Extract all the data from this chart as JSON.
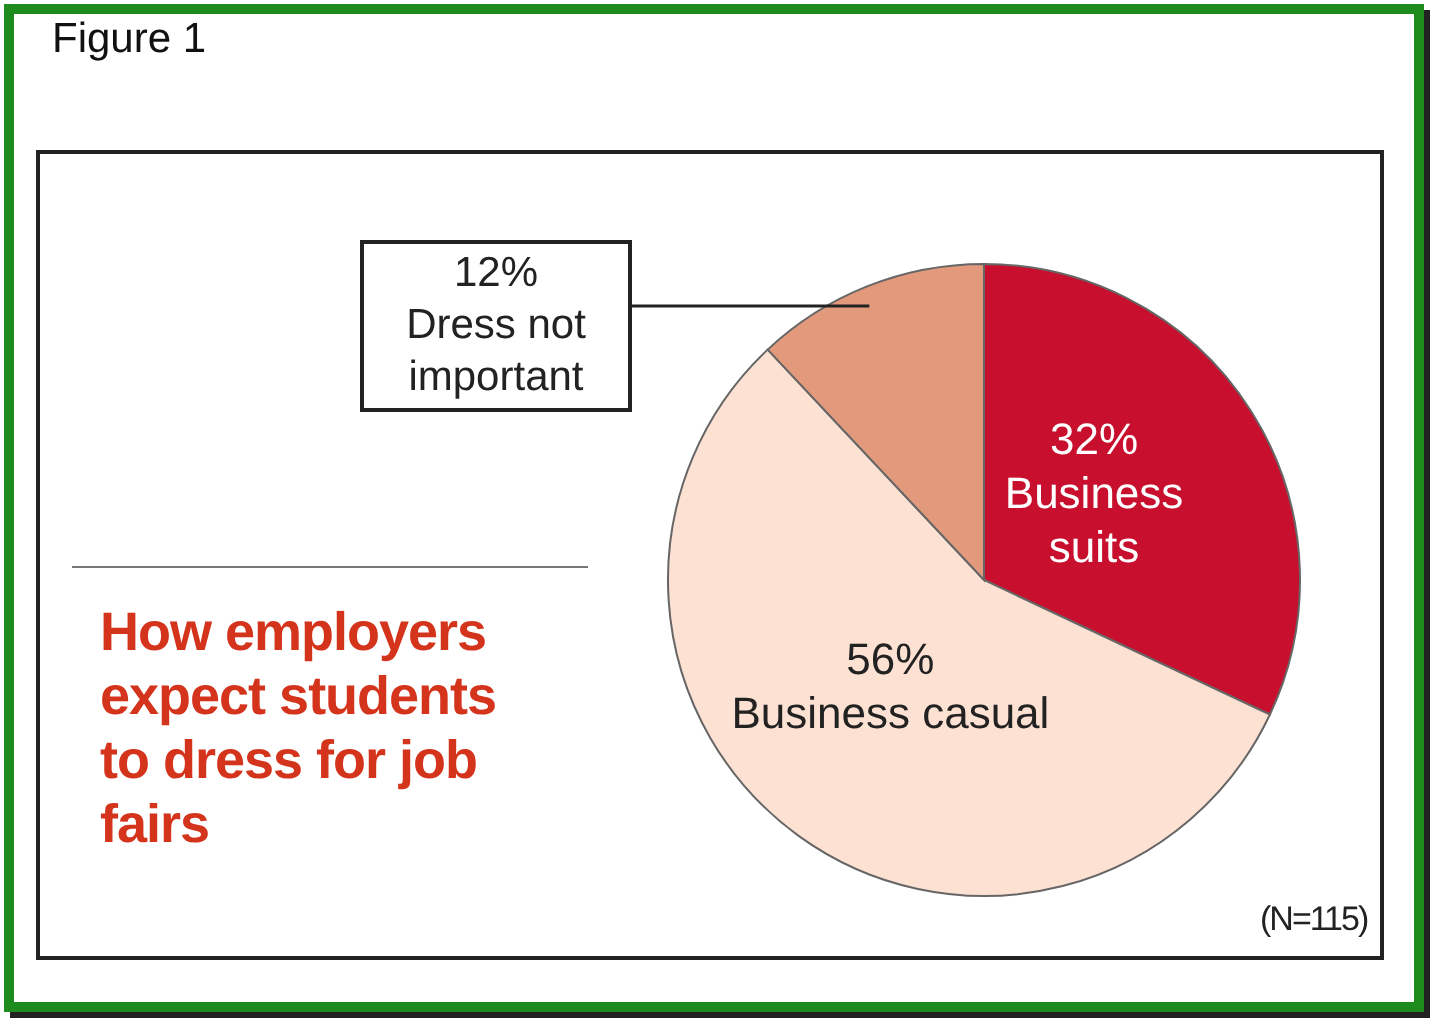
{
  "chart_data": {
    "type": "pie",
    "title": "How employers expect students to dress for job fairs",
    "categories": [
      "Business suits",
      "Business casual",
      "Dress not important"
    ],
    "values": [
      32,
      56,
      12
    ],
    "colors": [
      "#c8102e",
      "#fde1d2",
      "#e39a7c"
    ],
    "value_labels": [
      "32%",
      "56%",
      "12%"
    ],
    "annotations": [
      "Figure 1",
      "(N=115)"
    ]
  }
}
